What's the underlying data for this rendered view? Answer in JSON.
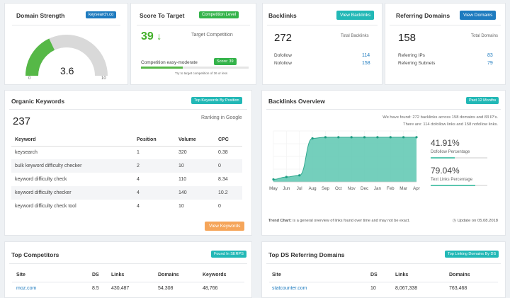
{
  "domain_strength": {
    "title": "Domain Strength",
    "site_badge": "keysearch.co",
    "value": "3.6",
    "min_label": "0",
    "max_label": "10",
    "gauge_fraction": 0.36
  },
  "score_to_target": {
    "title": "Score To Target",
    "badge": "Competition Level",
    "value": "39",
    "arrow": "↓",
    "target_label": "Target Competition",
    "competition_label": "Competition easy-moderate",
    "score_badge": "Score: 39",
    "hint": "Try to target competition of 36 or less",
    "progress_fraction": 0.39
  },
  "backlinks": {
    "title": "Backlinks",
    "button": "View Backlinks",
    "total": "272",
    "total_label": "Total Backlinks",
    "rows": [
      {
        "label": "Dofollow",
        "value": "114"
      },
      {
        "label": "Nofollow",
        "value": "158"
      }
    ]
  },
  "referring_domains": {
    "title": "Referring Domains",
    "button": "View Domains",
    "total": "158",
    "total_label": "Total Domains",
    "rows": [
      {
        "label": "Referring IPs",
        "value": "83"
      },
      {
        "label": "Referring Subnets",
        "value": "79"
      }
    ]
  },
  "organic_keywords": {
    "title": "Organic Keywords",
    "badge": "Top Keywords By Position",
    "count": "237",
    "ranking_label": "Ranking in Google",
    "columns": [
      "Keyword",
      "Position",
      "Volume",
      "CPC"
    ],
    "rows": [
      [
        "keysearch",
        "1",
        "320",
        "0.38"
      ],
      [
        "bulk keyword difficulty checker",
        "2",
        "10",
        "0"
      ],
      [
        "keyword difficulty check",
        "4",
        "110",
        "8.34"
      ],
      [
        "keyword difficulty checker",
        "4",
        "140",
        "10.2"
      ],
      [
        "keyword difficulty check tool",
        "4",
        "10",
        "0"
      ]
    ],
    "button": "View Keywords"
  },
  "backlinks_overview": {
    "title": "Backlinks Overview",
    "badge": "Past 12 Months",
    "summary_1": "We have found: 272 backlinks across 158 domains and 83 IP's.",
    "summary_2": "There are: 114 dofollow links and 158 nofollow links.",
    "dofollow_pct": "41.91%",
    "dofollow_label": "Dofollow Percentage",
    "dofollow_fraction": 0.4191,
    "text_links_pct": "79.04%",
    "text_links_label": "Text Links Percentage",
    "text_links_fraction": 0.7904,
    "trend_label": "Trend Chart:",
    "trend_text": "is a general overview of links found over time and may not be exact.",
    "update_text": "Update on 05.08.2018",
    "color": "#5cc7b0"
  },
  "chart_data": {
    "type": "area",
    "x": [
      "May",
      "Jun",
      "Jul",
      "Aug",
      "Sep",
      "Oct",
      "Nov",
      "Dec",
      "Jan",
      "Feb",
      "Mar",
      "Apr"
    ],
    "y": [
      15,
      30,
      40,
      265,
      272,
      272,
      272,
      272,
      272,
      272,
      272,
      272
    ],
    "ylim": [
      0,
      310
    ],
    "grid": true
  },
  "top_competitors": {
    "title": "Top Competitors",
    "badge": "Found In SERPS",
    "columns": [
      "Site",
      "DS",
      "Links",
      "Domains",
      "Keywords"
    ],
    "rows": [
      [
        "moz.com",
        "8.5",
        "430,487",
        "54,308",
        "48,766"
      ]
    ]
  },
  "top_referring": {
    "title": "Top DS Referring Domains",
    "badge": "Top Linking Domains By DS",
    "columns": [
      "Site",
      "DS",
      "Links",
      "Domains"
    ],
    "rows": [
      [
        "statcounter.com",
        "10",
        "8,067,338",
        "763,468"
      ]
    ]
  }
}
